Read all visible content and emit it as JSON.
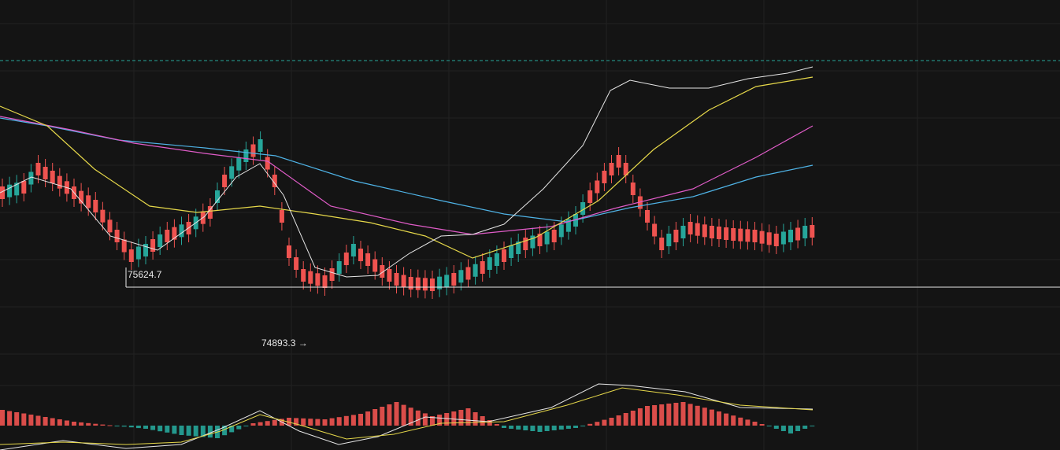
{
  "chart_data": {
    "type": "candlestick",
    "annotations": {
      "support_label": "75624.7",
      "low_label": "74893.3",
      "low_arrow": "→"
    },
    "support_level": 75624.7,
    "low_price": 74893.3,
    "last_price": 77310,
    "candle_count": 114,
    "grid": true,
    "colors": {
      "up": "#26a69a",
      "down": "#ef5350",
      "ma_fast": "#e6e6e6",
      "ma_mid": "#e6d84a",
      "ma_slow": "#e05cc8",
      "ma_long": "#4fb3e6",
      "background": "#141414",
      "grid": "#222222",
      "last_price_line": "#26a69a",
      "support_line": "#e8e8e8"
    },
    "legend": "none"
  }
}
